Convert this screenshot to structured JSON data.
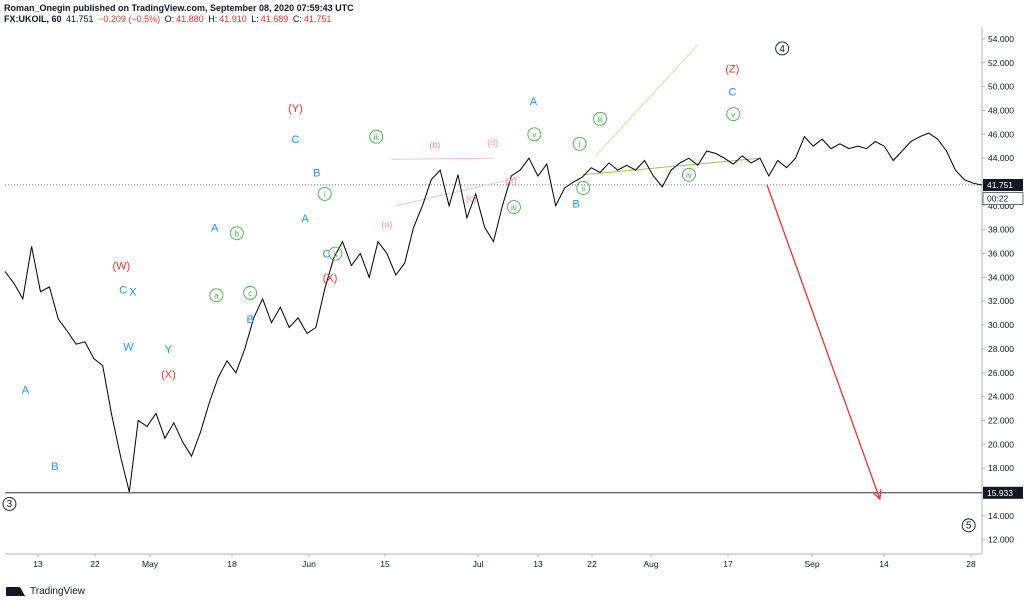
{
  "header": {
    "publisher": "Roman_Onegin published on TradingView.com, September 08, 2020 07:59:43 UTC",
    "symbol": "FX:UKOIL, 60",
    "last": "41.751",
    "change": "−0.209 (−0.5%)",
    "o_label": "O:",
    "o_value": "41.880",
    "h_label": "H:",
    "h_value": "41.910",
    "l_label": "L:",
    "l_value": "41.689",
    "c_label": "C:",
    "c_value": "41.751"
  },
  "footer": {
    "brand": "TradingView"
  },
  "colors": {
    "price_line": "#000000",
    "blue": "#2196f3",
    "red": "#e53935",
    "green": "#4caf50",
    "pink": "#f48fb1",
    "black": "#131722"
  },
  "chart_data": {
    "type": "line",
    "title": "",
    "xlabel": "",
    "ylabel": "",
    "ylim": [
      10.8,
      55
    ],
    "grid": false,
    "x_ticks": [
      "13",
      "22",
      "May",
      "18",
      "Jun",
      "15",
      "Jul",
      "13",
      "22",
      "Aug",
      "17",
      "Sep",
      "14",
      "28"
    ],
    "y_ticks": [
      "54.000",
      "52.000",
      "50.000",
      "48.000",
      "46.000",
      "44.000",
      "42.000",
      "40.000",
      "38.000",
      "36.000",
      "34.000",
      "32.000",
      "30.000",
      "28.000",
      "26.000",
      "24.000",
      "22.000",
      "20.000",
      "18.000",
      "16.000",
      "14.000",
      "12.000"
    ],
    "price_labels": [
      {
        "value": 41.751,
        "text": "41.751",
        "style": "last"
      },
      {
        "value": 40.6,
        "text": "00:22",
        "style": "timer"
      },
      {
        "value": 15.933,
        "text": "15.933",
        "style": "level"
      }
    ],
    "horizontal_level": 15.933,
    "series": [
      {
        "values": [
          34.5,
          33.5,
          32.2,
          36.6,
          32.8,
          33.2,
          30.5,
          29.5,
          28.4,
          28.6,
          27.2,
          26.6,
          22.5,
          19.0,
          16.0,
          22.0,
          21.5,
          22.6,
          20.5,
          21.8,
          20.2,
          19.0,
          21.0,
          23.5,
          25.6,
          27.0,
          26.0,
          28.0,
          30.6,
          32.2,
          30.2,
          31.5,
          29.8,
          30.6,
          29.3,
          29.8,
          33.0,
          35.6,
          37.0,
          35.0,
          36.0,
          34.0,
          37.0,
          36.0,
          34.2,
          35.2,
          38.2,
          40.0,
          42.2,
          43.0,
          40.0,
          42.6,
          39.0,
          41.0,
          38.2,
          37.0,
          40.0,
          42.5,
          43.0,
          44.0,
          42.5,
          43.5,
          40.0,
          41.5,
          42.0,
          42.4,
          43.2,
          42.8,
          43.6,
          43.0,
          43.4,
          43.0,
          43.8,
          42.5,
          41.6,
          43.0,
          43.6,
          44.0,
          43.4,
          44.6,
          44.4,
          44.0,
          43.5,
          44.2,
          43.6,
          44.0,
          42.5,
          43.8,
          43.2,
          44.0,
          45.8,
          45.0,
          45.6,
          44.8,
          45.2,
          44.8,
          45.0,
          44.8,
          45.4,
          45.0,
          43.8,
          44.6,
          45.4,
          45.8,
          46.1,
          45.6,
          44.6,
          43.0,
          42.2,
          41.9,
          41.751
        ]
      }
    ],
    "wave_labels": [
      {
        "text": "3",
        "style": "circle-black",
        "x": 0.5,
        "y": 15.0
      },
      {
        "text": "4",
        "style": "circle-black",
        "x": 87.5,
        "y": 53.2
      },
      {
        "text": "5",
        "style": "circle-black",
        "x": 108.5,
        "y": 13.2
      },
      {
        "text": "A",
        "style": "blue",
        "x": 2.3,
        "y": 24.6
      },
      {
        "text": "B",
        "style": "blue",
        "x": 5.6,
        "y": 18.2
      },
      {
        "text": "(W)",
        "style": "red",
        "x": 13.1,
        "y": 35.0
      },
      {
        "text": "C",
        "style": "blue",
        "x": 13.3,
        "y": 33.0
      },
      {
        "text": "X",
        "style": "blue",
        "x": 14.4,
        "y": 32.8
      },
      {
        "text": "W",
        "style": "blue",
        "x": 13.9,
        "y": 28.2
      },
      {
        "text": "Y",
        "style": "blue",
        "x": 18.4,
        "y": 28.0
      },
      {
        "text": "(X)",
        "style": "red",
        "x": 18.4,
        "y": 25.9
      },
      {
        "text": "A",
        "style": "blue",
        "x": 23.6,
        "y": 38.2
      },
      {
        "text": "b",
        "style": "circle-green",
        "x": 26.1,
        "y": 37.7
      },
      {
        "text": "a",
        "style": "circle-green",
        "x": 23.8,
        "y": 32.5
      },
      {
        "text": "c",
        "style": "circle-green",
        "x": 27.6,
        "y": 32.7
      },
      {
        "text": "B",
        "style": "blue",
        "x": 27.6,
        "y": 30.5
      },
      {
        "text": "(Y)",
        "style": "red",
        "x": 32.7,
        "y": 48.2
      },
      {
        "text": "C",
        "style": "blue",
        "x": 32.7,
        "y": 45.6
      },
      {
        "text": "B",
        "style": "blue",
        "x": 35.1,
        "y": 42.8
      },
      {
        "text": "A",
        "style": "blue",
        "x": 33.8,
        "y": 39.0
      },
      {
        "text": "i",
        "style": "circle-green",
        "x": 36.0,
        "y": 41.0
      },
      {
        "text": "C",
        "style": "blue",
        "x": 36.2,
        "y": 36.0
      },
      {
        "text": "ii",
        "style": "circle-green",
        "x": 37.2,
        "y": 36.0
      },
      {
        "text": "(X)",
        "style": "red",
        "x": 36.6,
        "y": 34.0
      },
      {
        "text": "iii",
        "style": "circle-green",
        "x": 41.8,
        "y": 45.8
      },
      {
        "text": "(a)",
        "style": "pink",
        "x": 43.0,
        "y": 38.5
      },
      {
        "text": "(b)",
        "style": "pink",
        "x": 48.4,
        "y": 45.2
      },
      {
        "text": "(c)",
        "style": "pink",
        "x": 52.5,
        "y": 40.7
      },
      {
        "text": "(d)",
        "style": "pink",
        "x": 54.9,
        "y": 45.4
      },
      {
        "text": "(e)",
        "style": "pink",
        "x": 57.0,
        "y": 42.2
      },
      {
        "text": "iv",
        "style": "circle-green",
        "x": 57.3,
        "y": 39.9
      },
      {
        "text": "A",
        "style": "blue",
        "x": 59.5,
        "y": 48.8
      },
      {
        "text": "v",
        "style": "circle-green",
        "x": 59.6,
        "y": 46.0
      },
      {
        "text": "B",
        "style": "blue",
        "x": 64.3,
        "y": 40.2
      },
      {
        "text": "i",
        "style": "circle-green",
        "x": 64.7,
        "y": 45.2
      },
      {
        "text": "ii",
        "style": "circle-green",
        "x": 65.1,
        "y": 41.5
      },
      {
        "text": "iii",
        "style": "circle-green",
        "x": 67.0,
        "y": 47.3
      },
      {
        "text": "iv",
        "style": "circle-green",
        "x": 77.0,
        "y": 42.6
      },
      {
        "text": "(Z)",
        "style": "red",
        "x": 81.9,
        "y": 51.5
      },
      {
        "text": "C",
        "style": "blue",
        "x": 81.9,
        "y": 49.6
      },
      {
        "text": "v",
        "style": "circle-green",
        "x": 82.0,
        "y": 47.7
      }
    ],
    "trend_lines": [
      {
        "style": "pink",
        "points": [
          [
            43.5,
            43.9
          ],
          [
            55.0,
            44.0
          ]
        ]
      },
      {
        "style": "pink",
        "points": [
          [
            44.0,
            40.0
          ],
          [
            58.0,
            42.4
          ]
        ]
      },
      {
        "style": "green-light",
        "points": [
          [
            65.0,
            42.6
          ],
          [
            85.0,
            44.0
          ]
        ]
      },
      {
        "style": "green-faint",
        "points": [
          [
            66.5,
            44.2
          ],
          [
            78.0,
            53.5
          ]
        ]
      },
      {
        "style": "red-arrow",
        "points": [
          [
            85.8,
            41.751
          ],
          [
            98.5,
            15.4
          ]
        ]
      }
    ]
  }
}
